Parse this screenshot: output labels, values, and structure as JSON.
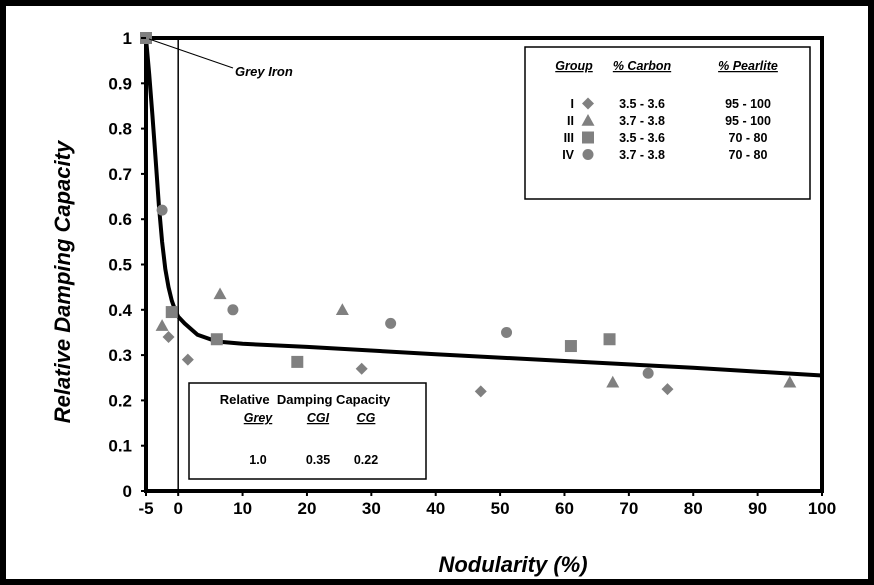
{
  "chart_data": {
    "type": "scatter",
    "title": "",
    "xlabel": "Nodularity (%)",
    "ylabel": "Relative Damping Capacity",
    "xlim": [
      -5,
      100
    ],
    "ylim": [
      0,
      1
    ],
    "x_ticks": [
      "-5",
      "0",
      "10",
      "20",
      "30",
      "40",
      "50",
      "60",
      "70",
      "80",
      "90",
      "100"
    ],
    "x_tick_values": [
      -5,
      0,
      10,
      20,
      30,
      40,
      50,
      60,
      70,
      80,
      90,
      100
    ],
    "y_ticks": [
      "0",
      "0.1",
      "0.2",
      "0.3",
      "0.4",
      "0.5",
      "0.6",
      "0.7",
      "0.8",
      "0.9",
      "1"
    ],
    "y_tick_values": [
      0,
      0.1,
      0.2,
      0.3,
      0.4,
      0.5,
      0.6,
      0.7,
      0.8,
      0.9,
      1
    ],
    "grid": false,
    "marker_color": "#808080",
    "curve_color": "#000000",
    "series": [
      {
        "name": "I",
        "marker": "diamond",
        "carbon": "3.5 - 3.6",
        "pearlite": "95 - 100",
        "x": [
          -1.5,
          1.5,
          28.5,
          47,
          76
        ],
        "y": [
          0.34,
          0.29,
          0.27,
          0.22,
          0.225
        ]
      },
      {
        "name": "II",
        "marker": "triangle",
        "carbon": "3.7 - 3.8",
        "pearlite": "95 - 100",
        "x": [
          -2.5,
          6.5,
          25.5,
          67.5,
          95
        ],
        "y": [
          0.365,
          0.435,
          0.4,
          0.24,
          0.24
        ]
      },
      {
        "name": "III",
        "marker": "square",
        "carbon": "3.5 - 3.6",
        "pearlite": "70 - 80",
        "x": [
          -5,
          -1,
          6,
          18.5,
          61,
          67
        ],
        "y": [
          1.0,
          0.395,
          0.335,
          0.285,
          0.32,
          0.335
        ]
      },
      {
        "name": "IV",
        "marker": "circle",
        "carbon": "3.7 - 3.8",
        "pearlite": "70 - 80",
        "x": [
          -2.5,
          8.5,
          33,
          51,
          73
        ],
        "y": [
          0.62,
          0.4,
          0.37,
          0.35,
          0.26
        ]
      }
    ],
    "trend_curve": {
      "x": [
        -5,
        -4.5,
        -4,
        -3.5,
        -3,
        -2.5,
        -2,
        -1.5,
        -1,
        -0.5,
        0,
        1,
        3,
        6,
        10,
        20,
        40,
        60,
        80,
        100
      ],
      "y": [
        1.0,
        0.92,
        0.83,
        0.73,
        0.63,
        0.55,
        0.49,
        0.45,
        0.42,
        0.4,
        0.385,
        0.37,
        0.345,
        0.33,
        0.325,
        0.318,
        0.302,
        0.287,
        0.272,
        0.255
      ]
    },
    "vertical_line_x": 0,
    "annotation": {
      "text": "Grey Iron",
      "target_x": -5,
      "target_y": 1.0
    },
    "legend": {
      "position": "top-right",
      "headers": [
        "Group",
        "% Carbon",
        "% Pearlite"
      ]
    },
    "inset_table": {
      "title": "Relative  Damping Capacity",
      "headers": [
        "Grey",
        "CGI",
        "CG"
      ],
      "values": [
        "1.0",
        "0.35",
        "0.22"
      ]
    }
  }
}
